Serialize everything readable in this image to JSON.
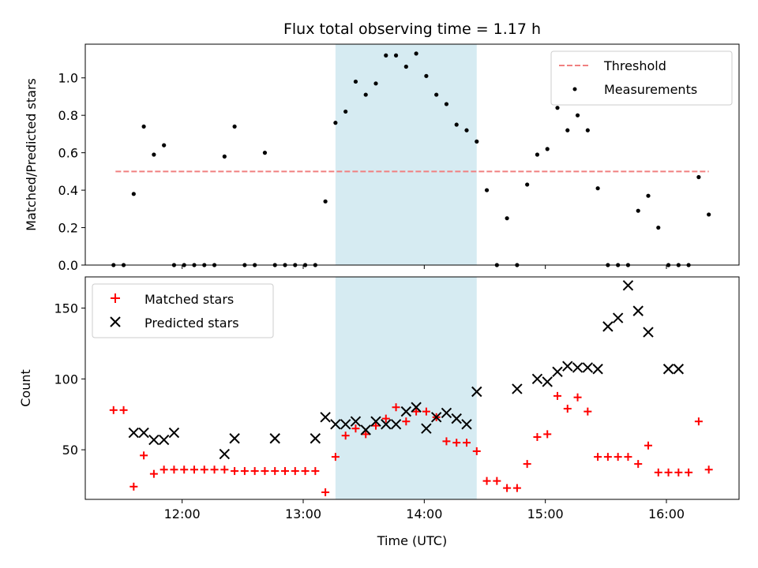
{
  "chart_data": {
    "title": "Flux total observing time = 1.17 h",
    "xlabel": "Time (UTC)",
    "x_tick_labels": [
      "12:00",
      "13:00",
      "14:00",
      "15:00",
      "16:00"
    ],
    "x_tick_values": [
      "12:00",
      "13:00",
      "14:00",
      "15:00",
      "16:00"
    ],
    "xlim": [
      "11:12",
      "16:36"
    ],
    "highlight_span": {
      "start": "13:16",
      "end": "14:26",
      "color": "#add8e6"
    },
    "panels": [
      {
        "id": "ratio",
        "type": "scatter",
        "ylabel": "Matched/Predicted stars",
        "ylim": [
          0,
          1.18
        ],
        "y_tick_labels": [
          "0.0",
          "0.2",
          "0.4",
          "0.6",
          "0.8",
          "1.0"
        ],
        "legend_position": "upper right",
        "threshold": {
          "name": "Threshold",
          "value": 0.5,
          "x_start": "11:27",
          "x_end": "16:21",
          "color": "#f08080",
          "style": "dashed"
        },
        "series": [
          {
            "name": "Measurements",
            "marker": "dot",
            "color": "#000000",
            "x": [
              "11:26",
              "11:31",
              "11:36",
              "11:41",
              "11:46",
              "11:51",
              "11:56",
              "12:01",
              "12:06",
              "12:11",
              "12:16",
              "12:21",
              "12:26",
              "12:31",
              "12:36",
              "12:41",
              "12:46",
              "12:51",
              "12:56",
              "13:01",
              "13:06",
              "13:11",
              "13:16",
              "13:21",
              "13:26",
              "13:31",
              "13:36",
              "13:41",
              "13:46",
              "13:51",
              "13:56",
              "14:01",
              "14:06",
              "14:11",
              "14:16",
              "14:21",
              "14:26",
              "14:31",
              "14:36",
              "14:41",
              "14:46",
              "14:51",
              "14:56",
              "15:01",
              "15:06",
              "15:11",
              "15:16",
              "15:21",
              "15:26",
              "15:31",
              "15:36",
              "15:41",
              "15:46",
              "15:51",
              "15:56",
              "16:01",
              "16:06",
              "16:11",
              "16:16",
              "16:21"
            ],
            "y": [
              0,
              0,
              0.38,
              0.74,
              0.59,
              0.64,
              0,
              0,
              0,
              0,
              0,
              0.58,
              0.74,
              0,
              0,
              0.6,
              0,
              0,
              0,
              0,
              0,
              0.34,
              0.76,
              0.82,
              0.98,
              0.91,
              0.97,
              1.12,
              1.12,
              1.06,
              1.13,
              1.01,
              0.91,
              0.86,
              0.75,
              0.72,
              0.66,
              0.4,
              0,
              0.25,
              0,
              0.43,
              0.59,
              0.62,
              0.84,
              0.72,
              0.8,
              0.72,
              0.41,
              0,
              0,
              0,
              0.29,
              0.37,
              0.2,
              0,
              0,
              0,
              0.47,
              0.27
            ]
          }
        ]
      },
      {
        "id": "counts",
        "type": "scatter",
        "ylabel": "Count",
        "ylim": [
          15,
          172
        ],
        "y_tick_labels": [
          "50",
          "100",
          "150"
        ],
        "legend_position": "upper left",
        "series": [
          {
            "name": "Matched stars",
            "marker": "plus",
            "color": "#ff0000",
            "x": [
              "11:26",
              "11:31",
              "11:36",
              "11:41",
              "11:46",
              "11:51",
              "11:56",
              "12:01",
              "12:06",
              "12:11",
              "12:16",
              "12:21",
              "12:26",
              "12:31",
              "12:36",
              "12:41",
              "12:46",
              "12:51",
              "12:56",
              "13:01",
              "13:06",
              "13:11",
              "13:16",
              "13:21",
              "13:26",
              "13:31",
              "13:36",
              "13:41",
              "13:46",
              "13:51",
              "13:56",
              "14:01",
              "14:06",
              "14:11",
              "14:16",
              "14:21",
              "14:26",
              "14:31",
              "14:36",
              "14:41",
              "14:46",
              "14:51",
              "14:56",
              "15:01",
              "15:06",
              "15:11",
              "15:16",
              "15:21",
              "15:26",
              "15:31",
              "15:36",
              "15:41",
              "15:46",
              "15:51",
              "15:56",
              "16:01",
              "16:06",
              "16:11",
              "16:16",
              "16:21"
            ],
            "y": [
              78,
              78,
              24,
              46,
              33,
              36,
              36,
              36,
              36,
              36,
              36,
              36,
              35,
              35,
              35,
              35,
              35,
              35,
              35,
              35,
              35,
              20,
              45,
              60,
              65,
              61,
              67,
              72,
              80,
              70,
              77,
              77,
              73,
              56,
              55,
              55,
              49,
              28,
              28,
              23,
              23,
              40,
              59,
              61,
              88,
              79,
              87,
              77,
              45,
              45,
              45,
              45,
              40,
              53,
              34,
              34,
              34,
              34,
              70,
              36
            ]
          },
          {
            "name": "Predicted stars",
            "marker": "x",
            "color": "#000000",
            "x": [
              "11:36",
              "11:41",
              "11:46",
              "11:51",
              "11:56",
              "12:21",
              "12:26",
              "12:46",
              "13:06",
              "13:11",
              "13:16",
              "13:21",
              "13:26",
              "13:31",
              "13:36",
              "13:41",
              "13:46",
              "13:51",
              "13:56",
              "14:01",
              "14:06",
              "14:11",
              "14:16",
              "14:21",
              "14:26",
              "14:46",
              "14:56",
              "15:01",
              "15:06",
              "15:11",
              "15:16",
              "15:21",
              "15:26",
              "15:31",
              "15:36",
              "15:41",
              "15:46",
              "15:51",
              "16:01",
              "16:06"
            ],
            "y": [
              62,
              62,
              57,
              57,
              62,
              47,
              58,
              58,
              58,
              73,
              68,
              68,
              70,
              64,
              70,
              68,
              68,
              77,
              80,
              65,
              73,
              76,
              72,
              68,
              91,
              93,
              100,
              98,
              105,
              109,
              108,
              108,
              107,
              137,
              143,
              166,
              148,
              133,
              107,
              107
            ]
          }
        ]
      }
    ]
  }
}
